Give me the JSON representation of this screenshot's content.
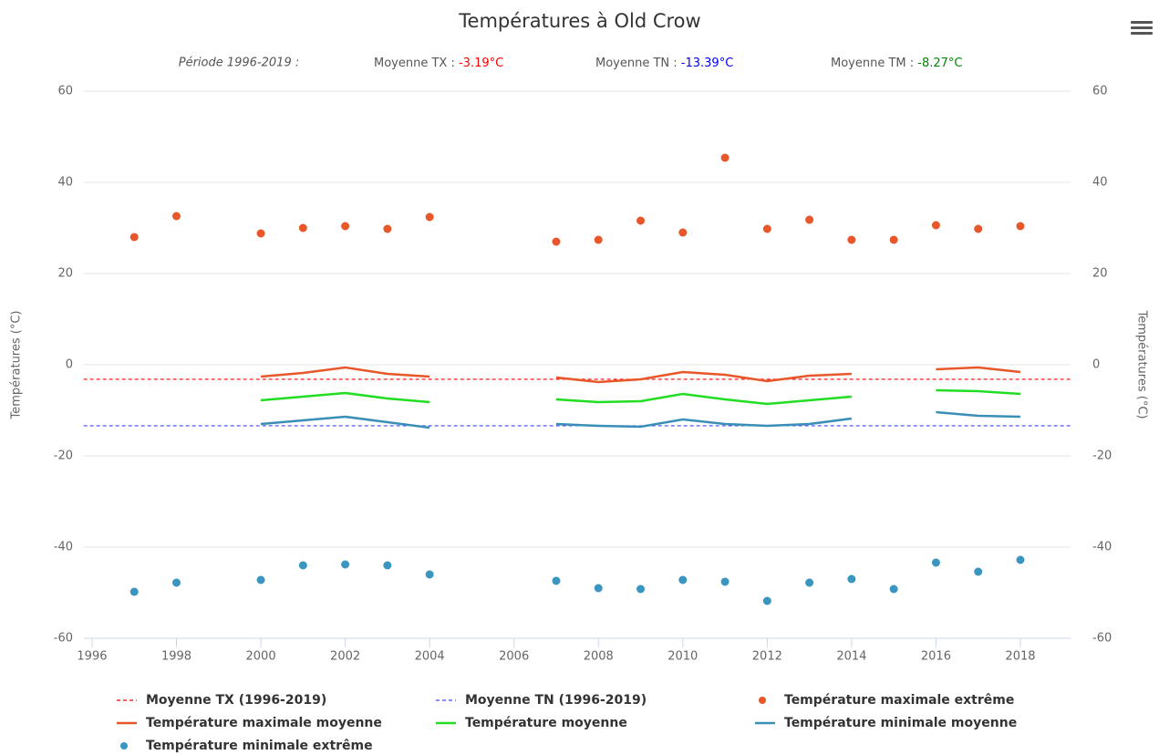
{
  "chart_data": {
    "type": "line",
    "title": "Températures à Old Crow",
    "subtitle": {
      "period": "Période 1996-2019 :",
      "items": [
        {
          "label": "Moyenne TX :",
          "value": "-3.19°C",
          "color": "#ff0000"
        },
        {
          "label": "Moyenne TN :",
          "value": "-13.39°C",
          "color": "#0000ff"
        },
        {
          "label": "Moyenne TM :",
          "value": "-8.27°C",
          "color": "#008800"
        }
      ]
    },
    "y_label": "Températures (°C)",
    "y2_label": "Températures (°C)",
    "x": [
      1997,
      1998,
      1999,
      2000,
      2001,
      2002,
      2003,
      2004,
      2005,
      2006,
      2007,
      2008,
      2009,
      2010,
      2011,
      2012,
      2013,
      2014,
      2015,
      2016,
      2017,
      2018
    ],
    "xlim": [
      1995.8,
      2019.2
    ],
    "xticks": [
      1996,
      1998,
      2000,
      2002,
      2004,
      2006,
      2008,
      2010,
      2012,
      2014,
      2016,
      2018
    ],
    "ylim": [
      -60,
      60
    ],
    "yticks": [
      -60,
      -40,
      -20,
      0,
      20,
      40,
      60
    ],
    "y2lim": [
      -60,
      60
    ],
    "y2ticks": [
      -60,
      -40,
      -20,
      0,
      20,
      40,
      60
    ],
    "grid": true,
    "series": [
      {
        "name": "Moyenne TX (1996-2019)",
        "kind": "dashed",
        "color": "#ff0000",
        "value": -3.19
      },
      {
        "name": "Moyenne TN (1996-2019)",
        "kind": "dashed",
        "color": "#4444ff",
        "value": -13.39
      },
      {
        "name": "Température maximale extrême",
        "kind": "scatter",
        "color": "#e8572a",
        "values": [
          28,
          32.6,
          null,
          28.8,
          30,
          30.4,
          29.8,
          32.4,
          null,
          null,
          27,
          27.4,
          31.6,
          29,
          45.4,
          29.8,
          31.8,
          27.4,
          27.4,
          30.6,
          29.8,
          30.4
        ]
      },
      {
        "name": "Température maximale moyenne",
        "kind": "line",
        "color": "#e8572a",
        "values": [
          null,
          null,
          null,
          -2.6,
          -1.8,
          -0.6,
          -2,
          -2.6,
          null,
          null,
          -2.8,
          -3.8,
          -3.2,
          -1.6,
          -2.2,
          -3.6,
          -2.4,
          -2,
          null,
          -1,
          -0.6,
          -1.6
        ]
      },
      {
        "name": "Température moyenne",
        "kind": "line",
        "color": "#22dd22",
        "values": [
          null,
          null,
          null,
          -7.8,
          -7,
          -6.2,
          -7.4,
          -8.2,
          null,
          null,
          -7.6,
          -8.2,
          -8,
          -6.4,
          -7.6,
          -8.6,
          -7.8,
          -7,
          null,
          -5.6,
          -5.8,
          -6.4
        ]
      },
      {
        "name": "Température minimale moyenne",
        "kind": "line",
        "color": "#3a8fb7",
        "values": [
          null,
          null,
          null,
          -13,
          -12.2,
          -11.4,
          -12.6,
          -13.8,
          null,
          null,
          -13,
          -13.4,
          -13.6,
          -12,
          -13,
          -13.4,
          -13,
          -11.8,
          null,
          -10.4,
          -11.2,
          -11.4
        ]
      },
      {
        "name": "Température minimale extrême",
        "kind": "scatter",
        "color": "#3a95c0",
        "values": [
          -49.8,
          -47.8,
          null,
          -47.2,
          -44,
          -43.8,
          -44,
          -46,
          null,
          null,
          -47.4,
          -49,
          -49.2,
          -47.2,
          -47.6,
          -51.8,
          -47.8,
          -47,
          -49.2,
          -43.4,
          -45.4,
          -42.8
        ]
      }
    ]
  }
}
